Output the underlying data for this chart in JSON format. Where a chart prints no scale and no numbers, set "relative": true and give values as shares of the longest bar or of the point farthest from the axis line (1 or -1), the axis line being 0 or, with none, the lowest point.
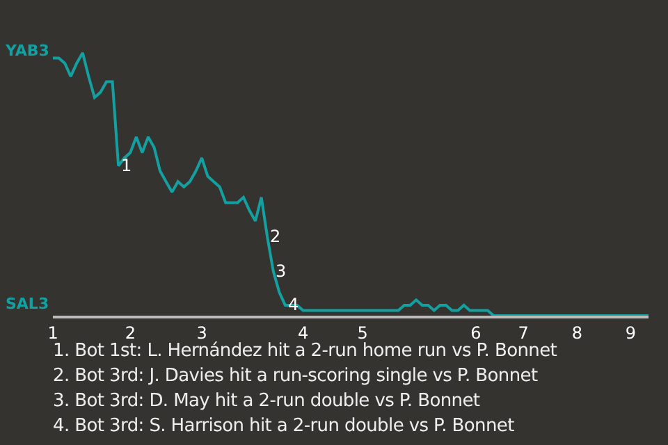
{
  "chart_data": {
    "type": "line",
    "relative": true,
    "marker": "none",
    "line_style": "solid",
    "categories": [
      "1",
      null,
      null,
      null,
      null,
      null,
      null,
      null,
      null,
      null,
      null,
      null,
      null,
      "2",
      null,
      null,
      null,
      null,
      null,
      null,
      null,
      null,
      null,
      null,
      null,
      "3",
      null,
      null,
      null,
      null,
      null,
      null,
      null,
      null,
      null,
      null,
      null,
      null,
      null,
      null,
      null,
      null,
      "4",
      null,
      null,
      null,
      null,
      null,
      null,
      null,
      null,
      null,
      "5",
      null,
      null,
      null,
      null,
      null,
      null,
      null,
      null,
      null,
      null,
      null,
      null,
      null,
      null,
      null,
      null,
      null,
      null,
      "6",
      null,
      null,
      null,
      null,
      null,
      null,
      null,
      "7",
      null,
      null,
      null,
      null,
      null,
      null,
      null,
      null,
      "8",
      null,
      null,
      null,
      null,
      null,
      null,
      null,
      null,
      "9",
      null,
      null,
      null
    ],
    "series": [
      {
        "color": "#14a0a0",
        "values": [
          0.98,
          0.98,
          0.96,
          0.91,
          0.96,
          1,
          0.91,
          0.83,
          0.85,
          0.89,
          0.89,
          0.57,
          0.6,
          0.62,
          0.68,
          0.62,
          0.68,
          0.64,
          0.55,
          0.51,
          0.47,
          0.51,
          0.49,
          0.51,
          0.55,
          0.6,
          0.53,
          0.51,
          0.49,
          0.43,
          0.43,
          0.43,
          0.45,
          0.4,
          0.36,
          0.45,
          0.3,
          0.17,
          0.09,
          0.04,
          0.04,
          0.04,
          0.02,
          0.02,
          0.02,
          0.02,
          0.02,
          0.02,
          0.02,
          0.02,
          0.02,
          0.02,
          0.02,
          0.02,
          0.02,
          0.02,
          0.02,
          0.02,
          0.02,
          0.04,
          0.04,
          0.06,
          0.04,
          0.04,
          0.02,
          0.04,
          0.04,
          0.02,
          0.02,
          0.04,
          0.02,
          0.02,
          0.02,
          0.02,
          0,
          0,
          0,
          0,
          0,
          0,
          0,
          0,
          0,
          0,
          0,
          0,
          0,
          0,
          0,
          0,
          0,
          0,
          0,
          0,
          0,
          0,
          0,
          0,
          0,
          0,
          0
        ]
      }
    ],
    "annotations": [
      "YAB3",
      "SAL3",
      {
        "text": "1",
        "y": 0.57
      },
      {
        "text": "2",
        "y": 0.3
      },
      {
        "text": "3",
        "y": 0.17
      },
      {
        "text": "4",
        "y": 0.04
      },
      "1. Bot 1st: L. Hernández hit a 2-run home run vs P. Bonnet",
      "2. Bot 3rd: J. Davies hit a run-scoring single vs P. Bonnet",
      "3. Bot 3rd: D. May hit a 2-run double vs P. Bonnet",
      "4. Bot 3rd: S. Harrison hit a 2-run double vs P. Bonnet"
    ]
  }
}
